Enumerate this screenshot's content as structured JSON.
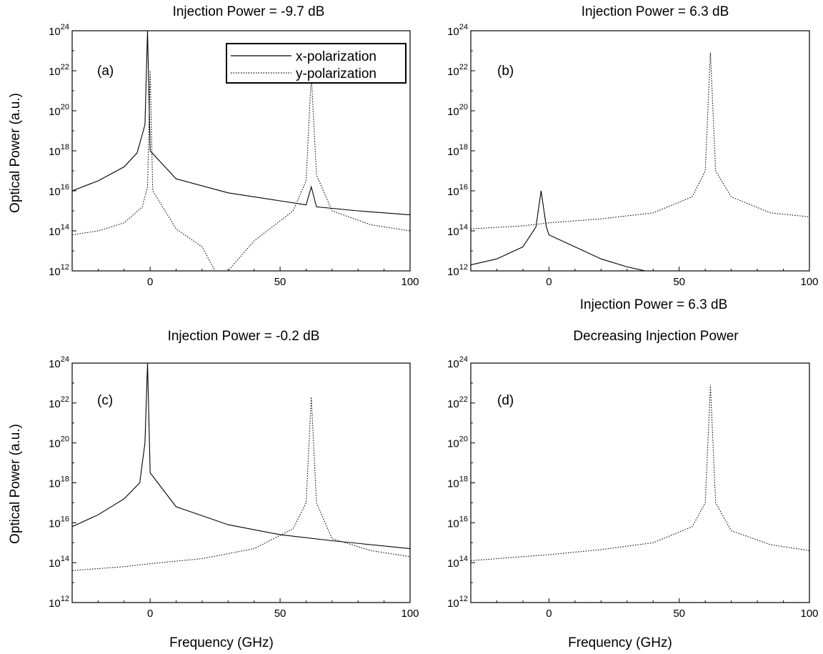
{
  "figure": {
    "ylabel": "Optical Power (a.u.)",
    "xlabel": "Frequency (GHz)",
    "extra_title": "Injection Power = 6.3 dB"
  },
  "legend": {
    "entries": [
      {
        "label": "x-polarization",
        "style": "solid"
      },
      {
        "label": "y-polarization",
        "style": "dotted"
      }
    ],
    "placement": "top-right of panel (a)"
  },
  "chart_data": [
    {
      "panel": "(a)",
      "type": "line",
      "title": "Injection Power = -9.7 dB",
      "xlim": [
        -30,
        100
      ],
      "ylim_exponent": [
        12,
        24
      ],
      "yscale": "log",
      "xticks": [
        0,
        50,
        100
      ],
      "yticks": [
        "10^12",
        "10^14",
        "10^16",
        "10^18",
        "10^20",
        "10^22",
        "10^24"
      ],
      "series": [
        {
          "name": "x-polarization",
          "style": "solid",
          "x": [
            -30,
            -20,
            -10,
            -5,
            -2,
            -1,
            0,
            10,
            30,
            50,
            60,
            62,
            64,
            80,
            100
          ],
          "log10_y": [
            16.0,
            16.5,
            17.2,
            17.9,
            19.3,
            24.0,
            18.0,
            16.6,
            15.9,
            15.5,
            15.3,
            16.2,
            15.2,
            15.0,
            14.8
          ]
        },
        {
          "name": "y-polarization",
          "style": "dotted",
          "x": [
            -30,
            -20,
            -10,
            -3,
            -1,
            0,
            1,
            10,
            20,
            25,
            30,
            40,
            55,
            60,
            62,
            64,
            70,
            85,
            100
          ],
          "log10_y": [
            13.8,
            14.0,
            14.4,
            15.2,
            16.2,
            22.0,
            16.0,
            14.1,
            13.2,
            12.0,
            12.0,
            13.5,
            15.0,
            16.5,
            21.8,
            16.8,
            15.0,
            14.3,
            14.0
          ]
        }
      ]
    },
    {
      "panel": "(b)",
      "type": "line",
      "title": "Injection Power = 6.3 dB",
      "xlim": [
        -30,
        100
      ],
      "ylim_exponent": [
        12,
        24
      ],
      "yscale": "log",
      "xticks": [
        0,
        50,
        100
      ],
      "yticks": [
        "10^12",
        "10^14",
        "10^16",
        "10^18",
        "10^20",
        "10^22",
        "10^24"
      ],
      "series": [
        {
          "name": "x-polarization",
          "style": "solid",
          "x": [
            -30,
            -20,
            -10,
            -5,
            -3,
            -1,
            0,
            10,
            20,
            30,
            37
          ],
          "log10_y": [
            12.3,
            12.6,
            13.2,
            14.2,
            16.0,
            14.2,
            13.8,
            13.2,
            12.6,
            12.2,
            12.0
          ]
        },
        {
          "name": "y-polarization",
          "style": "dotted",
          "x": [
            -30,
            -10,
            0,
            20,
            40,
            55,
            60,
            62,
            64,
            70,
            85,
            100
          ],
          "log10_y": [
            14.1,
            14.25,
            14.4,
            14.6,
            14.9,
            15.7,
            17.0,
            22.9,
            17.0,
            15.7,
            14.9,
            14.7
          ]
        }
      ]
    },
    {
      "panel": "(c)",
      "type": "line",
      "title": "Injection Power = -0.2 dB",
      "xlim": [
        -30,
        100
      ],
      "ylim_exponent": [
        12,
        24
      ],
      "yscale": "log",
      "xticks": [
        0,
        50,
        100
      ],
      "yticks": [
        "10^12",
        "10^14",
        "10^16",
        "10^18",
        "10^20",
        "10^22",
        "10^24"
      ],
      "series": [
        {
          "name": "x-polarization",
          "style": "solid",
          "x": [
            -30,
            -20,
            -10,
            -4,
            -2,
            -1,
            0,
            10,
            30,
            50,
            70,
            100
          ],
          "log10_y": [
            15.8,
            16.4,
            17.2,
            18.0,
            20.0,
            24.0,
            18.5,
            16.8,
            15.9,
            15.4,
            15.1,
            14.7
          ]
        },
        {
          "name": "y-polarization",
          "style": "dotted",
          "x": [
            -30,
            -10,
            0,
            20,
            40,
            55,
            60,
            62,
            64,
            70,
            85,
            100
          ],
          "log10_y": [
            13.6,
            13.8,
            13.95,
            14.2,
            14.7,
            15.7,
            17.0,
            22.3,
            17.0,
            15.2,
            14.6,
            14.3
          ]
        }
      ]
    },
    {
      "panel": "(d)",
      "type": "line",
      "title": "Decreasing Injection Power",
      "xlim": [
        -30,
        100
      ],
      "ylim_exponent": [
        12,
        24
      ],
      "yscale": "log",
      "xticks": [
        0,
        50,
        100
      ],
      "yticks": [
        "10^12",
        "10^14",
        "10^16",
        "10^18",
        "10^20",
        "10^22",
        "10^24"
      ],
      "series": [
        {
          "name": "y-polarization",
          "style": "dotted",
          "x": [
            -30,
            -10,
            0,
            20,
            40,
            55,
            60,
            62,
            64,
            70,
            85,
            100
          ],
          "log10_y": [
            14.1,
            14.3,
            14.4,
            14.65,
            15.0,
            15.8,
            17.0,
            22.9,
            17.0,
            15.6,
            14.9,
            14.6
          ]
        }
      ]
    }
  ]
}
